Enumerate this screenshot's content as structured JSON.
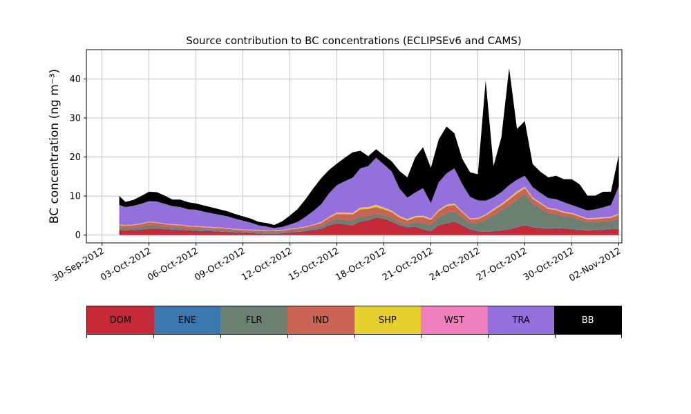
{
  "chart_data": {
    "type": "area",
    "stacked": true,
    "title": "Source contribution to BC concentrations (ECLIPSEv6 and CAMS)",
    "ylabel": "BC concentration (ng m⁻³)",
    "xlabel": "",
    "ylim": [
      -2,
      47.5
    ],
    "xlim_days": [
      -1,
      33.2
    ],
    "grid": true,
    "yticks": [
      0,
      10,
      20,
      30,
      40
    ],
    "xticks": [
      {
        "day": 0,
        "label": "30-Sep-2012"
      },
      {
        "day": 3,
        "label": "03-Oct-2012"
      },
      {
        "day": 6,
        "label": "06-Oct-2012"
      },
      {
        "day": 9,
        "label": "09-Oct-2012"
      },
      {
        "day": 12,
        "label": "12-Oct-2012"
      },
      {
        "day": 15,
        "label": "15-Oct-2012"
      },
      {
        "day": 18,
        "label": "18-Oct-2012"
      },
      {
        "day": 21,
        "label": "21-Oct-2012"
      },
      {
        "day": 24,
        "label": "24-Oct-2012"
      },
      {
        "day": 27,
        "label": "27-Oct-2012"
      },
      {
        "day": 30,
        "label": "30-Oct-2012"
      },
      {
        "day": 33,
        "label": "02-Nov-2012"
      }
    ],
    "x_days": [
      1.1,
      1.5,
      2.0,
      2.5,
      3.0,
      3.5,
      4.0,
      4.5,
      5.0,
      5.5,
      6.0,
      6.5,
      7.0,
      7.5,
      8.0,
      8.5,
      9.0,
      9.5,
      10.0,
      10.5,
      11.0,
      11.5,
      12.0,
      12.5,
      13.0,
      13.5,
      14.0,
      14.5,
      15.0,
      15.5,
      16.0,
      16.5,
      17.0,
      17.5,
      18.0,
      18.5,
      19.0,
      19.5,
      20.0,
      20.5,
      21.0,
      21.5,
      22.0,
      22.5,
      23.0,
      23.5,
      24.0,
      24.5,
      25.0,
      25.5,
      26.0,
      26.5,
      27.0,
      27.5,
      28.0,
      28.5,
      29.0,
      29.5,
      30.0,
      30.5,
      31.0,
      31.5,
      32.0,
      32.5,
      33.0
    ],
    "series": [
      {
        "name": "DOM",
        "color": "#c42a38",
        "values": [
          1.3,
          1.2,
          1.3,
          1.4,
          1.6,
          1.7,
          1.5,
          1.4,
          1.3,
          1.2,
          1.1,
          1.0,
          1.0,
          0.9,
          0.8,
          0.7,
          0.6,
          0.5,
          0.4,
          0.3,
          0.3,
          0.4,
          0.6,
          0.8,
          1.0,
          1.3,
          1.6,
          2.5,
          3.0,
          2.8,
          2.5,
          3.5,
          3.8,
          4.5,
          4.2,
          3.5,
          2.5,
          2.0,
          2.2,
          1.5,
          1.0,
          2.5,
          3.0,
          3.5,
          2.5,
          1.5,
          1.0,
          0.8,
          1.0,
          1.2,
          1.5,
          2.0,
          2.5,
          2.0,
          1.8,
          1.6,
          1.8,
          1.7,
          1.5,
          1.3,
          1.2,
          1.3,
          1.4,
          1.5,
          1.6
        ]
      },
      {
        "name": "ENE",
        "color": "#3a78b0",
        "values": [
          0.1,
          0.1,
          0.1,
          0.1,
          0.1,
          0.1,
          0.1,
          0.1,
          0.1,
          0.1,
          0.1,
          0.1,
          0.1,
          0.1,
          0.1,
          0.1,
          0.1,
          0.1,
          0.1,
          0.1,
          0.1,
          0.1,
          0.1,
          0.1,
          0.1,
          0.1,
          0.1,
          0.1,
          0.1,
          0.1,
          0.1,
          0.1,
          0.1,
          0.1,
          0.1,
          0.1,
          0.1,
          0.1,
          0.1,
          0.1,
          0.1,
          0.1,
          0.1,
          0.1,
          0.1,
          0.1,
          0.1,
          0.1,
          0.1,
          0.1,
          0.1,
          0.1,
          0.1,
          0.1,
          0.1,
          0.1,
          0.1,
          0.1,
          0.1,
          0.1,
          0.1,
          0.1,
          0.1,
          0.1,
          0.1
        ]
      },
      {
        "name": "FLR",
        "color": "#6b8070",
        "values": [
          0.5,
          0.5,
          0.5,
          0.6,
          0.8,
          0.6,
          0.5,
          0.5,
          0.5,
          0.4,
          0.4,
          0.4,
          0.4,
          0.4,
          0.3,
          0.3,
          0.3,
          0.3,
          0.3,
          0.3,
          0.3,
          0.3,
          0.4,
          0.4,
          0.4,
          0.5,
          0.6,
          0.8,
          1.0,
          1.0,
          1.2,
          1.2,
          1.0,
          0.9,
          0.8,
          0.8,
          0.7,
          0.6,
          1.0,
          1.5,
          1.5,
          2.0,
          2.5,
          2.5,
          2.0,
          1.5,
          2.0,
          3.0,
          4.0,
          5.0,
          6.0,
          7.0,
          8.0,
          6.0,
          5.0,
          4.0,
          3.5,
          3.0,
          3.0,
          2.5,
          2.0,
          2.0,
          2.0,
          2.0,
          2.5
        ]
      },
      {
        "name": "IND",
        "color": "#c96455",
        "values": [
          0.6,
          0.6,
          0.6,
          0.7,
          0.8,
          0.7,
          0.7,
          0.6,
          0.6,
          0.5,
          0.5,
          0.5,
          0.4,
          0.4,
          0.4,
          0.3,
          0.3,
          0.3,
          0.3,
          0.3,
          0.3,
          0.3,
          0.4,
          0.4,
          0.5,
          0.6,
          0.8,
          1.0,
          1.3,
          1.5,
          1.5,
          1.8,
          1.8,
          1.7,
          1.5,
          1.5,
          1.2,
          1.0,
          1.2,
          1.5,
          1.3,
          1.5,
          1.8,
          1.6,
          1.2,
          0.9,
          1.0,
          1.1,
          1.2,
          1.3,
          1.5,
          1.6,
          1.4,
          1.2,
          1.1,
          1.0,
          1.0,
          0.9,
          0.8,
          0.8,
          0.7,
          0.7,
          0.8,
          0.8,
          1.0
        ]
      },
      {
        "name": "SHP",
        "color": "#e5cf2f",
        "values": [
          0.1,
          0.1,
          0.1,
          0.1,
          0.1,
          0.1,
          0.1,
          0.1,
          0.1,
          0.1,
          0.1,
          0.1,
          0.1,
          0.1,
          0.1,
          0.1,
          0.1,
          0.1,
          0.1,
          0.1,
          0.1,
          0.1,
          0.1,
          0.1,
          0.1,
          0.1,
          0.2,
          0.2,
          0.3,
          0.3,
          0.3,
          0.4,
          0.4,
          0.5,
          0.4,
          0.3,
          0.3,
          0.3,
          0.3,
          0.3,
          0.2,
          0.3,
          0.3,
          0.3,
          0.2,
          0.2,
          0.2,
          0.2,
          0.3,
          0.3,
          0.4,
          0.4,
          0.3,
          0.3,
          0.2,
          0.2,
          0.2,
          0.2,
          0.2,
          0.2,
          0.2,
          0.2,
          0.2,
          0.2,
          0.2
        ]
      },
      {
        "name": "WST",
        "color": "#f07fbe",
        "values": [
          0.1,
          0.1,
          0.1,
          0.1,
          0.1,
          0.1,
          0.1,
          0.1,
          0.1,
          0.1,
          0.1,
          0.1,
          0.1,
          0.1,
          0.1,
          0.1,
          0.1,
          0.1,
          0.1,
          0.1,
          0.1,
          0.1,
          0.1,
          0.1,
          0.1,
          0.1,
          0.1,
          0.1,
          0.1,
          0.1,
          0.1,
          0.1,
          0.1,
          0.1,
          0.1,
          0.1,
          0.1,
          0.1,
          0.1,
          0.1,
          0.1,
          0.1,
          0.1,
          0.1,
          0.1,
          0.1,
          0.1,
          0.1,
          0.1,
          0.1,
          0.1,
          0.1,
          0.1,
          0.1,
          0.1,
          0.1,
          0.1,
          0.1,
          0.1,
          0.1,
          0.1,
          0.1,
          0.1,
          0.1,
          0.1
        ]
      },
      {
        "name": "TRA",
        "color": "#9370db",
        "values": [
          5.0,
          4.6,
          4.8,
          5.0,
          5.2,
          5.3,
          5.0,
          4.6,
          4.5,
          4.2,
          4.2,
          3.8,
          3.5,
          3.2,
          3.0,
          2.6,
          2.2,
          1.8,
          1.2,
          1.0,
          0.6,
          0.8,
          1.0,
          1.5,
          2.5,
          3.5,
          4.5,
          6.0,
          7.0,
          8.0,
          9.0,
          10.0,
          10.5,
          12.0,
          11.0,
          10.0,
          7.0,
          5.5,
          6.0,
          7.0,
          4.0,
          7.0,
          8.0,
          9.0,
          7.0,
          5.5,
          4.5,
          3.5,
          3.0,
          3.0,
          3.2,
          3.0,
          2.8,
          2.6,
          2.5,
          2.5,
          2.5,
          2.4,
          2.0,
          2.0,
          2.0,
          2.2,
          2.5,
          3.0,
          7.0
        ]
      },
      {
        "name": "BB",
        "color": "#000000",
        "values": [
          2.3,
          1.3,
          1.5,
          2.0,
          2.4,
          2.4,
          2.1,
          1.7,
          1.9,
          1.8,
          1.6,
          1.6,
          1.5,
          1.4,
          1.3,
          1.2,
          1.1,
          1.0,
          0.9,
          0.9,
          0.8,
          1.4,
          2.3,
          3.3,
          4.5,
          5.8,
          6.7,
          6.0,
          5.5,
          6.0,
          6.5,
          4.5,
          2.5,
          2.2,
          2.3,
          2.6,
          4.5,
          5.2,
          9.0,
          10.5,
          9.0,
          11.0,
          12.0,
          9.0,
          6.5,
          6.3,
          6.7,
          30.8,
          8.0,
          14.0,
          30.0,
          13.0,
          14.0,
          5.9,
          5.4,
          5.3,
          6.0,
          5.9,
          6.6,
          6.0,
          3.8,
          3.5,
          4.0,
          3.4,
          8.0
        ]
      }
    ]
  },
  "legend": {
    "items": [
      {
        "label": "DOM",
        "color": "#c42a38",
        "text_color": "#000000"
      },
      {
        "label": "ENE",
        "color": "#3a78b0",
        "text_color": "#000000"
      },
      {
        "label": "FLR",
        "color": "#6b8070",
        "text_color": "#000000"
      },
      {
        "label": "IND",
        "color": "#c96455",
        "text_color": "#000000"
      },
      {
        "label": "SHP",
        "color": "#e5cf2f",
        "text_color": "#000000"
      },
      {
        "label": "WST",
        "color": "#f07fbe",
        "text_color": "#000000"
      },
      {
        "label": "TRA",
        "color": "#9370db",
        "text_color": "#000000"
      },
      {
        "label": "BB",
        "color": "#000000",
        "text_color": "#ffffff"
      }
    ]
  }
}
